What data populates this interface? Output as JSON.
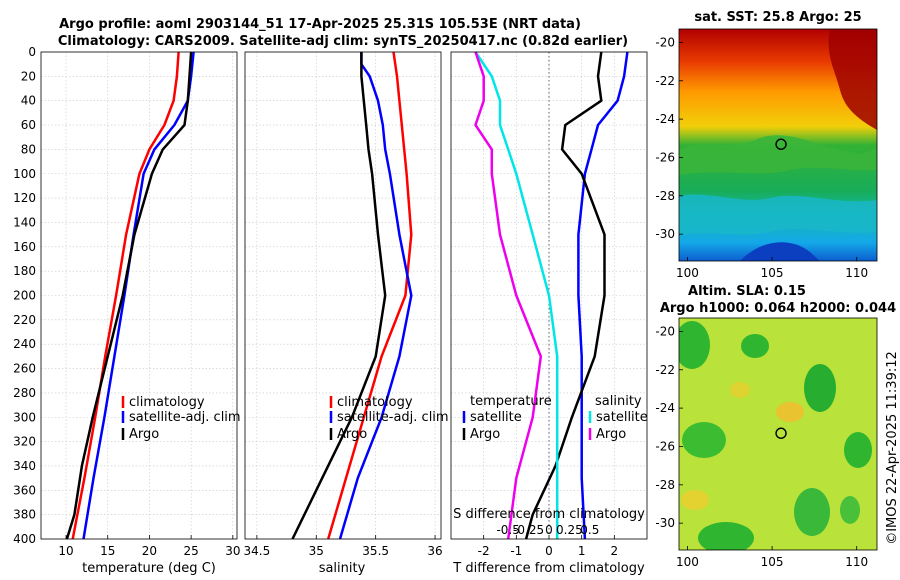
{
  "title_line1": "Argo profile: aoml 2903144_51 17-Apr-2025 25.31S 105.53E (NRT data)",
  "title_line2": "Climatology: CARS2009. Satellite-adj clim: synTS_20250417.nc (0.82d earlier)",
  "depth_ticks": [
    "0",
    "20",
    "40",
    "60",
    "80",
    "100",
    "120",
    "140",
    "160",
    "180",
    "200",
    "220",
    "240",
    "260",
    "280",
    "300",
    "320",
    "340",
    "360",
    "380",
    "400"
  ],
  "colors": {
    "red": "#ff0000",
    "blue": "#0000ff",
    "black": "#000000",
    "cyan": "#00e5e5",
    "magenta": "#ee00ee"
  },
  "chart_data": [
    {
      "type": "line",
      "name": "temperature",
      "xlabel": "temperature (deg C)",
      "ylabel": "depth",
      "xlim": [
        7,
        30.5
      ],
      "ylim": [
        0,
        400
      ],
      "xticks": [
        "10",
        "15",
        "20",
        "25",
        "30"
      ],
      "xtick_values": [
        10,
        15,
        20,
        25,
        30
      ],
      "legend": [
        "climatology",
        "satellite-adj. clim",
        "Argo"
      ],
      "series": [
        {
          "name": "climatology",
          "color": "red",
          "depth": [
            0,
            20,
            40,
            60,
            80,
            100,
            150,
            200,
            250,
            300,
            350,
            400
          ],
          "values": [
            23.5,
            23.3,
            22.9,
            21.8,
            20.0,
            18.8,
            17.2,
            16.0,
            14.7,
            13.5,
            12.2,
            10.8
          ]
        },
        {
          "name": "satellite-adj. clim",
          "color": "blue",
          "depth": [
            0,
            20,
            40,
            60,
            80,
            100,
            150,
            200,
            250,
            300,
            350,
            400
          ],
          "values": [
            25.3,
            25.0,
            24.6,
            23.0,
            20.6,
            19.3,
            18.1,
            17.0,
            15.8,
            14.6,
            13.3,
            12.1
          ]
        },
        {
          "name": "Argo",
          "color": "black",
          "depth": [
            0,
            20,
            40,
            60,
            80,
            100,
            150,
            200,
            250,
            300,
            340,
            380,
            400
          ],
          "values": [
            25.0,
            24.8,
            24.6,
            24.2,
            21.6,
            20.3,
            18.2,
            16.8,
            15.0,
            13.2,
            11.9,
            11.0,
            10.1
          ]
        }
      ]
    },
    {
      "type": "line",
      "name": "salinity",
      "xlabel": "salinity",
      "xlim": [
        34.4,
        36.05
      ],
      "ylim": [
        0,
        400
      ],
      "xticks": [
        "34.5",
        "35",
        "35.5",
        "36"
      ],
      "xtick_values": [
        34.5,
        35,
        35.5,
        36
      ],
      "legend": [
        "climatology",
        "satellite-adj. clim",
        "Argo"
      ],
      "series": [
        {
          "name": "climatology",
          "color": "red",
          "depth": [
            0,
            20,
            40,
            60,
            80,
            100,
            150,
            200,
            250,
            300,
            350,
            400
          ],
          "values": [
            35.65,
            35.68,
            35.7,
            35.72,
            35.74,
            35.76,
            35.8,
            35.75,
            35.55,
            35.4,
            35.25,
            35.1
          ]
        },
        {
          "name": "satellite-adj. clim",
          "color": "blue",
          "depth": [
            0,
            10,
            20,
            40,
            60,
            80,
            100,
            150,
            200,
            250,
            300,
            350,
            400
          ],
          "values": [
            35.38,
            35.38,
            35.45,
            35.52,
            35.56,
            35.58,
            35.62,
            35.7,
            35.8,
            35.7,
            35.55,
            35.35,
            35.2
          ]
        },
        {
          "name": "Argo",
          "color": "black",
          "depth": [
            0,
            20,
            40,
            60,
            80,
            100,
            150,
            200,
            250,
            300,
            350,
            380,
            400
          ],
          "values": [
            35.38,
            35.38,
            35.4,
            35.42,
            35.44,
            35.47,
            35.52,
            35.58,
            35.5,
            35.3,
            35.05,
            34.9,
            34.8
          ]
        }
      ]
    },
    {
      "type": "line",
      "name": "difference from climatology",
      "xlabel": "T difference from climatology",
      "top_axis_label": "S difference from climatology",
      "xlim": [
        -3,
        3
      ],
      "s_xlim": [
        -1.2,
        1.2
      ],
      "ylim": [
        0,
        400
      ],
      "xticks": [
        "-2",
        "-1",
        "0",
        "1",
        "2"
      ],
      "xtick_values": [
        -2,
        -1,
        0,
        1,
        2
      ],
      "s_xticks": [
        "-0.5",
        "-0.25",
        "0",
        "0.25",
        "0.5"
      ],
      "s_xtick_values": [
        -0.5,
        -0.25,
        0,
        0.25,
        0.5
      ],
      "legend_temperature_title": "temperature",
      "legend_salinity_title": "salinity",
      "legend_temperature": [
        "satellite",
        "Argo"
      ],
      "legend_salinity": [
        "satellite",
        "Argo"
      ],
      "series": [
        {
          "name": "T satellite",
          "color": "blue",
          "depth": [
            0,
            20,
            40,
            60,
            80,
            100,
            150,
            200,
            250,
            300,
            350,
            400
          ],
          "values": [
            2.4,
            2.3,
            2.1,
            1.5,
            1.3,
            1.1,
            0.9,
            0.9,
            1.0,
            1.0,
            1.0,
            1.1
          ]
        },
        {
          "name": "T Argo",
          "color": "black",
          "depth": [
            0,
            20,
            40,
            60,
            80,
            100,
            150,
            200,
            250,
            300,
            340,
            380,
            400
          ],
          "values": [
            1.6,
            1.5,
            1.6,
            0.5,
            0.4,
            1.0,
            1.7,
            1.7,
            1.4,
            0.7,
            0.2,
            -0.5,
            -0.7
          ]
        },
        {
          "name": "S satellite",
          "color": "cyan",
          "depth": [
            0,
            20,
            40,
            60,
            80,
            100,
            150,
            200,
            250,
            300,
            350,
            400
          ],
          "values": [
            -0.9,
            -0.7,
            -0.6,
            -0.6,
            -0.5,
            -0.4,
            -0.2,
            0.0,
            0.1,
            0.1,
            0.1,
            0.1
          ]
        },
        {
          "name": "S Argo",
          "color": "magenta",
          "depth": [
            0,
            20,
            40,
            60,
            80,
            100,
            150,
            200,
            250,
            300,
            350,
            400
          ],
          "values": [
            -0.9,
            -0.8,
            -0.8,
            -0.9,
            -0.7,
            -0.7,
            -0.6,
            -0.4,
            -0.1,
            -0.2,
            -0.4,
            -0.5
          ]
        }
      ]
    },
    {
      "type": "heatmap",
      "name": "sat. SST map",
      "title": "sat. SST: 25.8 Argo: 25",
      "xlim": [
        99.5,
        111.2
      ],
      "ylim": [
        -31.4,
        -19.3
      ],
      "xticks": [
        "100",
        "105",
        "110"
      ],
      "xtick_values": [
        100,
        105,
        110
      ],
      "yticks": [
        "-20",
        "-22",
        "-24",
        "-26",
        "-28",
        "-30"
      ],
      "ytick_values": [
        -20,
        -22,
        -24,
        -26,
        -28,
        -30
      ],
      "marker": {
        "lon": 105.53,
        "lat": -25.31
      }
    },
    {
      "type": "heatmap",
      "name": "Altim. SLA map",
      "title_line1": "Altim. SLA: 0.15",
      "title_line2": "Argo h1000: 0.064 h2000: 0.044",
      "xlim": [
        99.5,
        111.2
      ],
      "ylim": [
        -31.4,
        -19.3
      ],
      "xticks": [
        "100",
        "105",
        "110"
      ],
      "xtick_values": [
        100,
        105,
        110
      ],
      "yticks": [
        "-20",
        "-22",
        "-24",
        "-26",
        "-28",
        "-30"
      ],
      "ytick_values": [
        -20,
        -22,
        -24,
        -26,
        -28,
        -30
      ],
      "marker": {
        "lon": 105.53,
        "lat": -25.31
      }
    }
  ],
  "credit": "©IMOS 22-Apr-2025 11:39:12"
}
